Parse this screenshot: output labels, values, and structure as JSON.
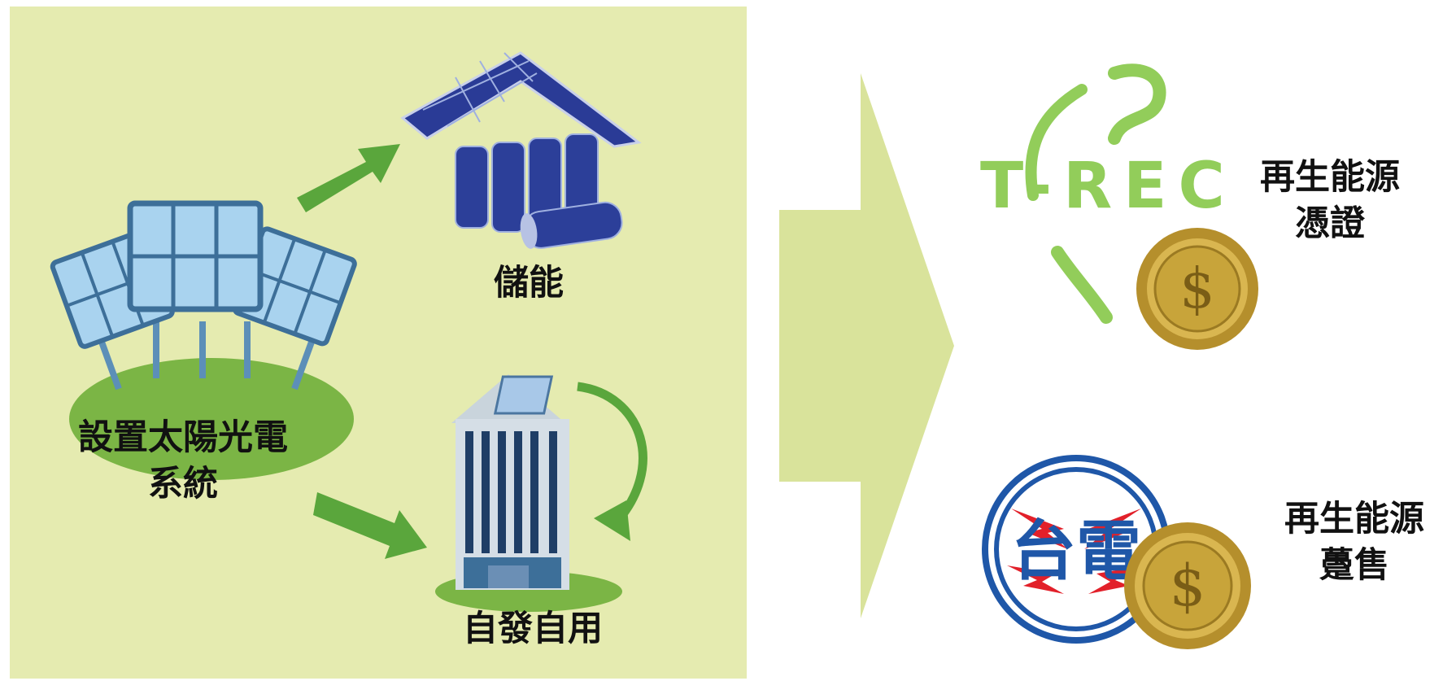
{
  "left_panel": {
    "solar_label_line1": "設置太陽光電",
    "solar_label_line2": "系統",
    "storage_label": "儲能",
    "self_use_label": "自發自用"
  },
  "right_panel": {
    "trec_logo_text": "T-REC",
    "cert_label_line1": "再生能源",
    "cert_label_line2": "憑證",
    "taipower_logo_text": "台電",
    "sale_label_line1": "再生能源",
    "sale_label_line2": "躉售"
  },
  "colors": {
    "panel_bg": "#e5ebb0",
    "big_arrow": "#d9e39b",
    "green_arrow": "#5aa63c",
    "trec_green": "#92cd5a",
    "taipower_blue": "#1f57a8",
    "bolt_red": "#e2202a",
    "coin_gold": "#c8a43a"
  }
}
